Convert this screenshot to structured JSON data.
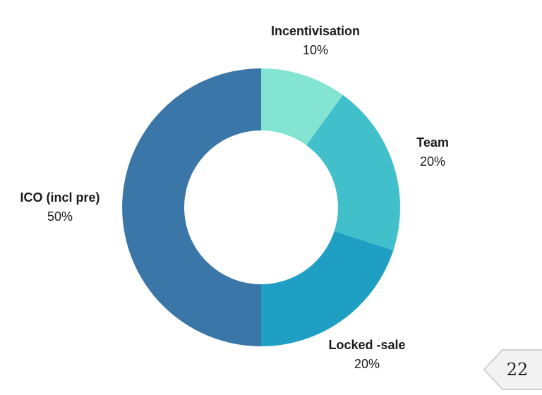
{
  "chart_data": {
    "type": "pie",
    "subtype": "donut",
    "slices": [
      {
        "label": "Incentivisation",
        "value": 10,
        "value_label": "10%",
        "color": "#82e4d1"
      },
      {
        "label": "Team",
        "value": 20,
        "value_label": "20%",
        "color": "#41c0cc"
      },
      {
        "label": "Locked -sale",
        "value": 20,
        "value_label": "20%",
        "color": "#209fc4"
      },
      {
        "label": "ICO (incl pre)",
        "value": 50,
        "value_label": "50%",
        "color": "#3a76a8"
      }
    ],
    "legend": "none",
    "labels_placement": "outside"
  },
  "page": {
    "number": "22"
  }
}
